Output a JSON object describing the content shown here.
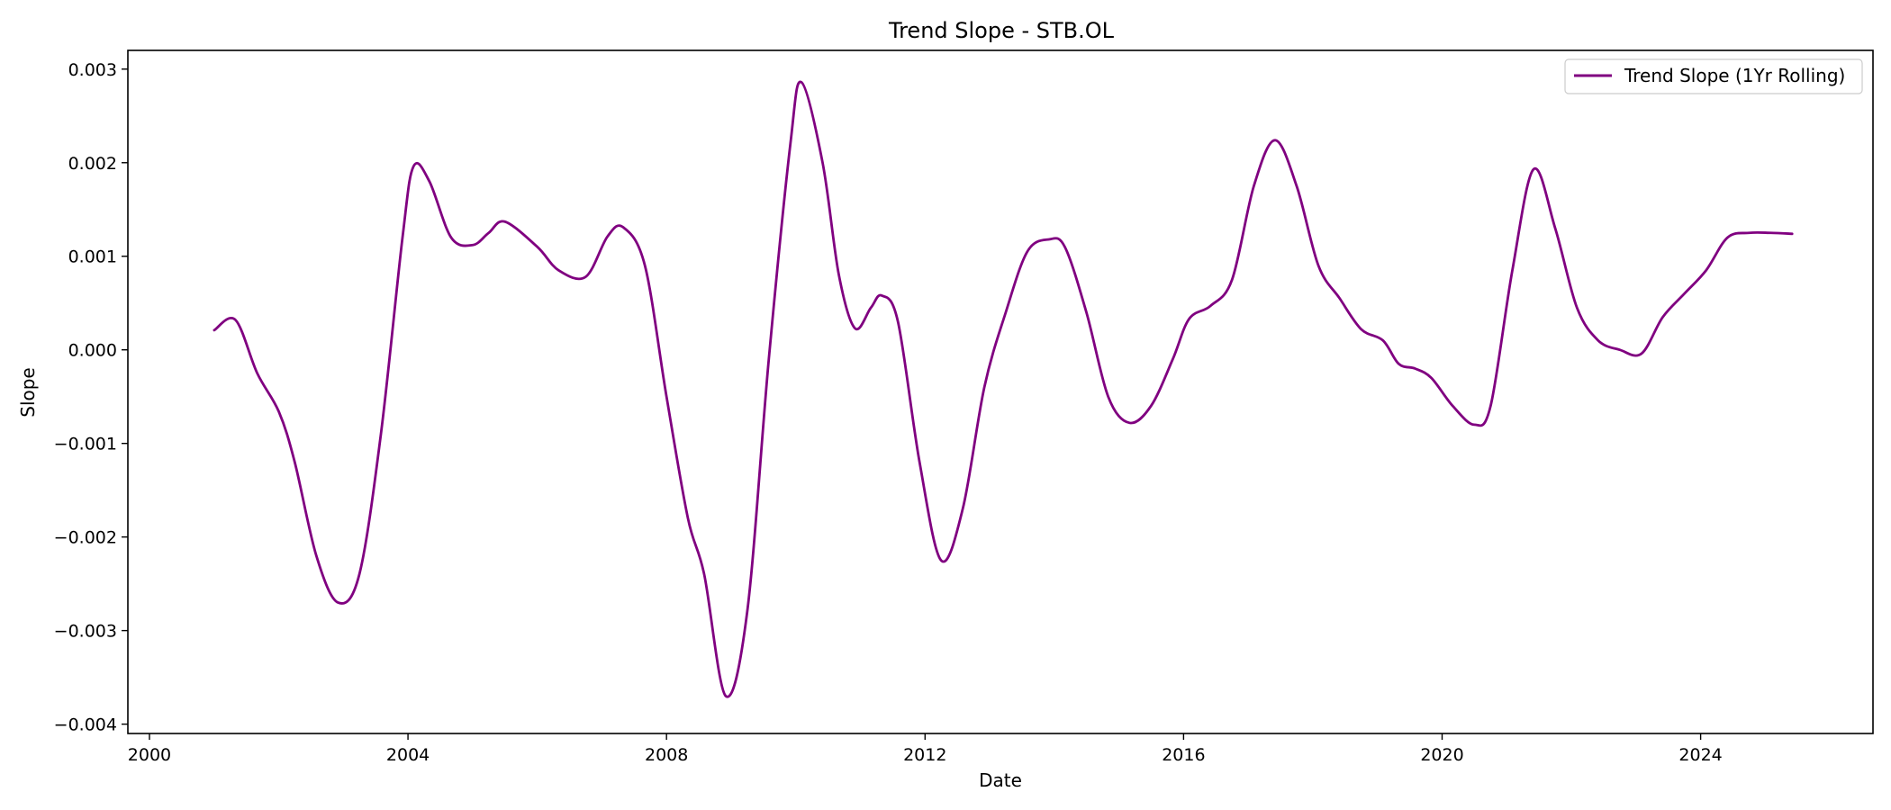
{
  "chart_data": {
    "type": "line",
    "title": "Trend Slope - STB.OL",
    "xlabel": "Date",
    "ylabel": "Slope",
    "xlim": [
      "1999-09-01",
      "2026-09-01"
    ],
    "ylim": [
      -0.0041,
      0.0032
    ],
    "x_ticks": [
      "2000",
      "2004",
      "2008",
      "2012",
      "2016",
      "2020",
      "2024"
    ],
    "y_ticks": [
      "0.003",
      "0.002",
      "0.001",
      "0.000",
      "−0.001",
      "−0.002",
      "−0.003",
      "−0.004"
    ],
    "y_tick_values": [
      0.003,
      0.002,
      0.001,
      0.0,
      -0.001,
      -0.002,
      -0.003,
      -0.004
    ],
    "grid": false,
    "legend_position": "top-right",
    "series": [
      {
        "name": "Trend Slope (1Yr Rolling)",
        "color": "#800080",
        "x": [
          "2001-01-01",
          "2001-05-01",
          "2001-09-01",
          "2002-01-01",
          "2002-04-01",
          "2002-08-01",
          "2002-12-01",
          "2003-04-01",
          "2003-08-01",
          "2003-12-01",
          "2004-02-01",
          "2004-05-01",
          "2004-09-01",
          "2005-01-01",
          "2005-04-01",
          "2005-07-01",
          "2006-01-01",
          "2006-05-01",
          "2006-10-01",
          "2007-02-01",
          "2007-05-01",
          "2007-09-01",
          "2008-01-01",
          "2008-05-01",
          "2008-08-01",
          "2008-12-01",
          "2009-04-01",
          "2009-08-01",
          "2009-12-01",
          "2010-02-01",
          "2010-06-01",
          "2010-09-01",
          "2010-12-01",
          "2011-03-01",
          "2011-05-01",
          "2011-08-01",
          "2011-12-01",
          "2012-04-01",
          "2012-08-01",
          "2012-12-01",
          "2013-04-01",
          "2013-08-01",
          "2013-12-01",
          "2014-03-01",
          "2014-07-01",
          "2014-11-01",
          "2015-03-01",
          "2015-07-01",
          "2015-11-01",
          "2016-02-01",
          "2016-06-01",
          "2016-10-01",
          "2017-02-01",
          "2017-06-01",
          "2017-10-01",
          "2018-02-01",
          "2018-06-01",
          "2018-10-01",
          "2019-02-01",
          "2019-05-01",
          "2019-08-01",
          "2019-11-01",
          "2020-03-01",
          "2020-07-01",
          "2020-10-01",
          "2021-02-01",
          "2021-06-01",
          "2021-10-01",
          "2022-02-01",
          "2022-06-01",
          "2022-10-01",
          "2023-02-01",
          "2023-06-01",
          "2023-10-01",
          "2024-02-01",
          "2024-06-01",
          "2024-10-01",
          "2025-02-01",
          "2025-06-01"
        ],
        "y": [
          0.00021,
          0.00032,
          -0.00025,
          -0.00066,
          -0.0012,
          -0.0022,
          -0.0027,
          -0.0024,
          -0.0009,
          0.0012,
          0.00196,
          0.0018,
          0.0012,
          0.00112,
          0.00125,
          0.00137,
          0.0011,
          0.00085,
          0.00078,
          0.00121,
          0.00131,
          0.0009,
          -0.0005,
          -0.0018,
          -0.0024,
          -0.0037,
          -0.0028,
          -0.0001,
          0.0022,
          0.00286,
          0.002,
          0.0008,
          0.00023,
          0.00045,
          0.00058,
          0.0003,
          -0.0012,
          -0.00225,
          -0.0017,
          -0.0004,
          0.0004,
          0.00105,
          0.00118,
          0.0011,
          0.0004,
          -0.0005,
          -0.00078,
          -0.0006,
          -0.0001,
          0.00033,
          0.00047,
          0.00075,
          0.00175,
          0.00224,
          0.00175,
          0.0009,
          0.00055,
          0.00022,
          0.0001,
          -0.00015,
          -0.0002,
          -0.0003,
          -0.0006,
          -0.0008,
          -0.0006,
          0.00085,
          0.00193,
          0.0013,
          0.00045,
          0.0001,
          -0.0,
          -4e-05,
          0.00035,
          0.0006,
          0.00085,
          0.0012,
          0.00125,
          0.00125,
          0.00124
        ]
      }
    ]
  }
}
